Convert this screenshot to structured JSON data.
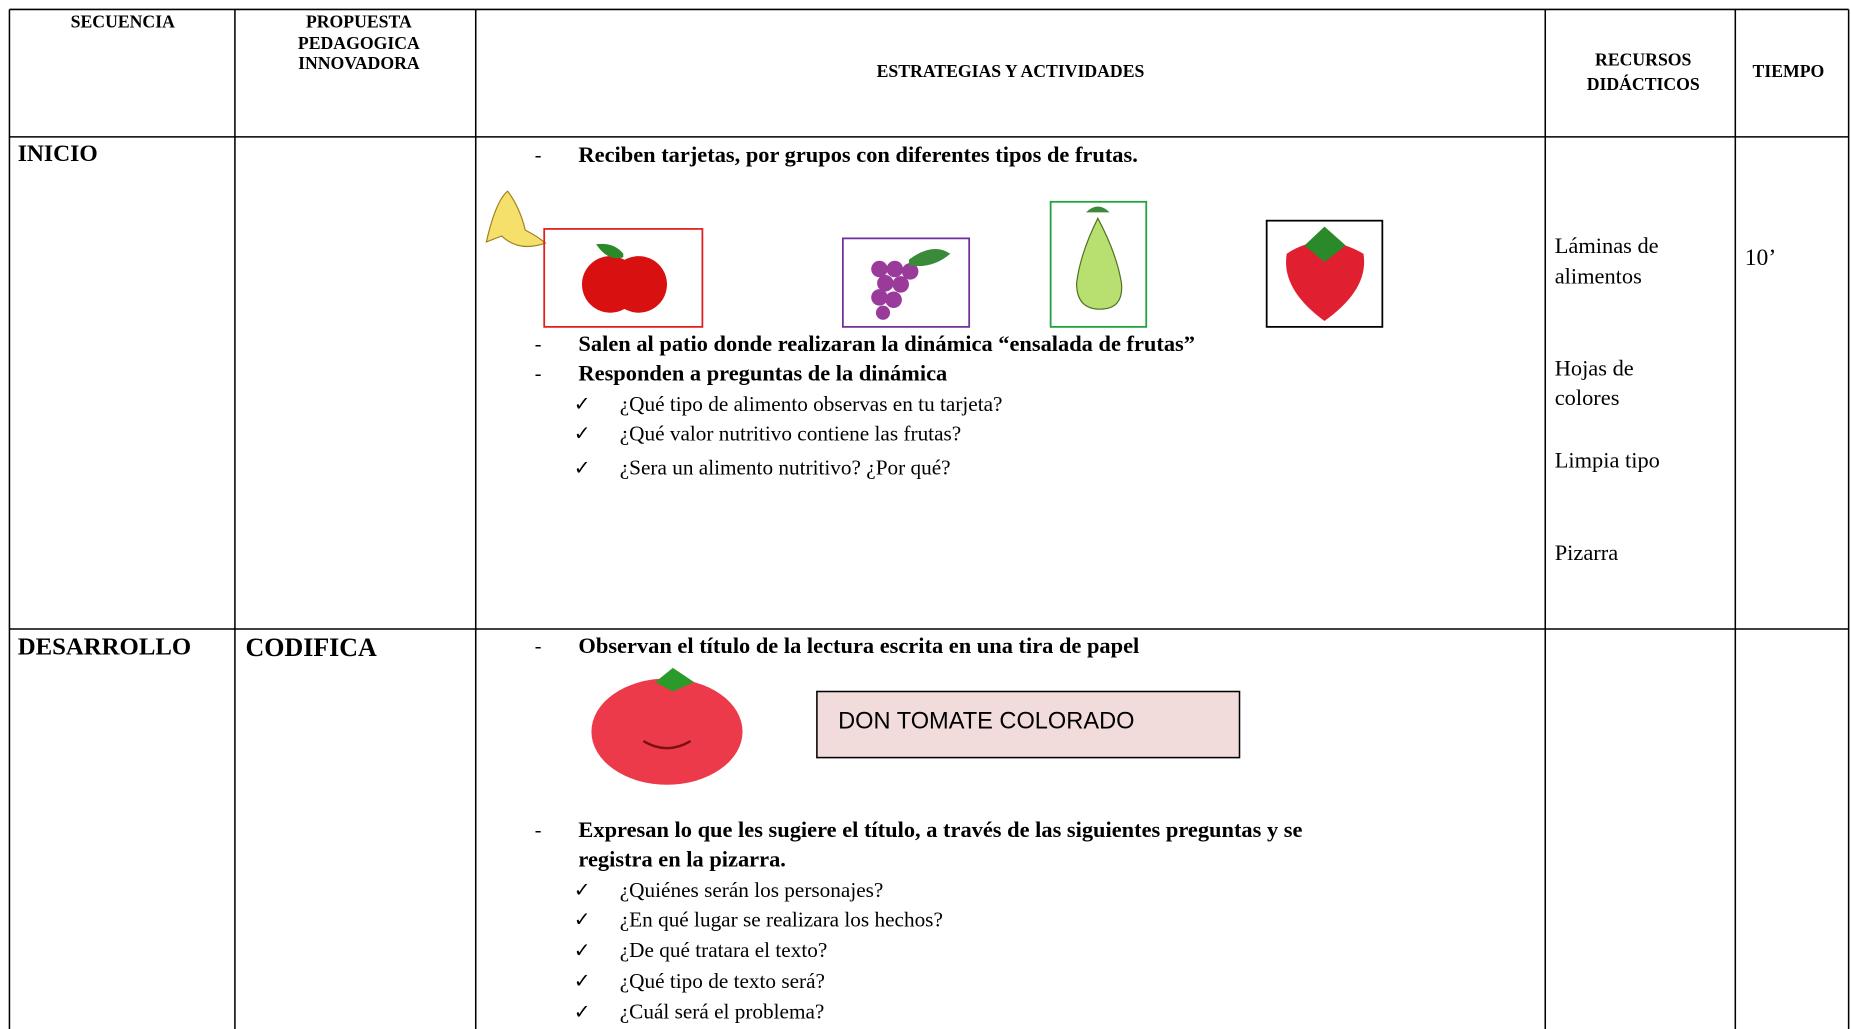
{
  "table": {
    "headers": [
      [
        "SECUENCIA"
      ],
      [
        "PROPUESTA",
        "PEDAGOGICA",
        "INNOVADORA"
      ],
      [
        "ESTRATEGIAS Y ACTIVIDADES"
      ],
      [
        "RECURSOS",
        "DIDÁCTICOS"
      ],
      [
        "TIEMPO"
      ]
    ],
    "rows": [
      {
        "secuencia": "INICIO",
        "actividades": [
          {
            "text": [
              "Reciben tarjetas, por grupos con diferentes tipos de frutas."
            ]
          },
          {
            "text": [
              "Salen al patio donde realizaran la dinámica “ensalada de frutas”"
            ]
          },
          {
            "text": [
              "Responden a preguntas de la dinámica"
            ],
            "preguntas": [
              "¿Qué tipo de alimento observas en tu  tarjeta?",
              "¿Qué valor nutritivo contiene las frutas?",
              "¿Sera un alimento nutritivo? ¿Por qué?"
            ]
          }
        ],
        "recursos": [
          [
            "Láminas de",
            "alimentos"
          ],
          [
            "Hojas de",
            "colores"
          ],
          [
            "Limpia tipo"
          ],
          [
            "Pizarra"
          ]
        ],
        "tiempo": "10’"
      },
      {
        "secuencia": "DESARROLLO",
        "propuesta": "CODIFICA",
        "actividades": [
          {
            "text": [
              "Observan el título de la lectura  escrita en una tira de papel"
            ],
            "titulo": "DON TOMATE COLORADO"
          },
          {
            "text": [
              "Expresan lo que les sugiere el título, a través de las siguientes preguntas y  se",
              "registra en la pizarra."
            ],
            "preguntas": [
              "¿Quiénes serán los personajes?",
              "¿En qué lugar se realizara los hechos?",
              "¿De qué tratara el texto?",
              "¿Qué tipo de texto será?",
              "¿Cuál será el problema?"
            ]
          }
        ]
      }
    ]
  }
}
